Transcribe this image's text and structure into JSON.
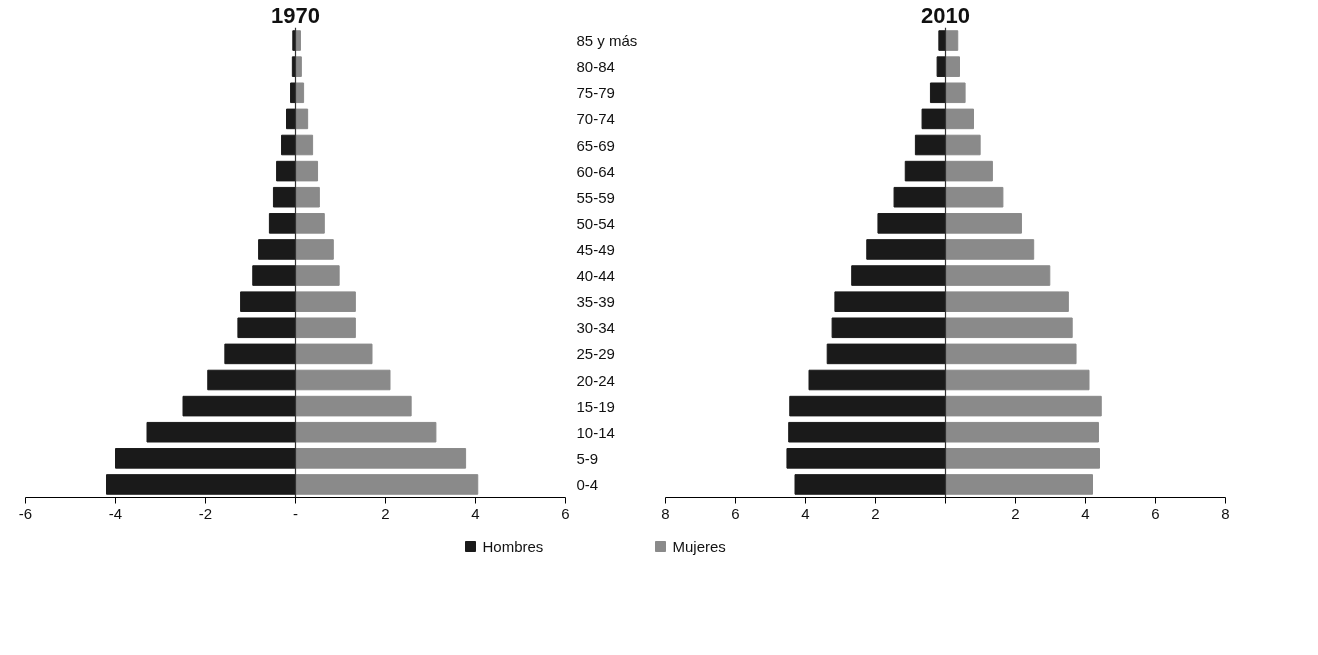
{
  "chart_data": [
    {
      "type": "bar",
      "orientation": "horizontal",
      "stacked": true,
      "title": "1970",
      "categories": [
        "85 y más",
        "80-84",
        "75-79",
        "70-74",
        "65-69",
        "60-64",
        "55-59",
        "50-54",
        "45-49",
        "40-44",
        "35-39",
        "30-34",
        "25-29",
        "20-24",
        "15-19",
        "10-14",
        "5-9",
        "0-4"
      ],
      "series": [
        {
          "name": "Hombres",
          "color": "#1a1a1a",
          "values": [
            -0.06,
            -0.07,
            -0.11,
            -0.2,
            -0.31,
            -0.42,
            -0.49,
            -0.58,
            -0.82,
            -0.95,
            -1.22,
            -1.28,
            -1.57,
            -1.95,
            -2.5,
            -3.3,
            -4.0,
            -4.2
          ]
        },
        {
          "name": "Mujeres",
          "color": "#8a8a8a",
          "values": [
            0.11,
            0.13,
            0.18,
            0.27,
            0.38,
            0.49,
            0.53,
            0.64,
            0.84,
            0.97,
            1.33,
            1.33,
            1.7,
            2.1,
            2.57,
            3.12,
            3.78,
            4.05
          ]
        }
      ],
      "xlim": [
        -6,
        6
      ],
      "xticks": [
        -6,
        -4,
        -2,
        {
          "value": 0,
          "label": "-"
        },
        2,
        4,
        6
      ],
      "ref_lines": [
        {
          "axis": "x",
          "value": 0
        }
      ],
      "grid": false,
      "legend": "bottom"
    },
    {
      "type": "bar",
      "orientation": "horizontal",
      "stacked": true,
      "title": "2010",
      "categories": [
        null,
        null,
        null,
        null,
        null,
        null,
        null,
        null,
        null,
        null,
        null,
        null,
        null,
        null,
        null,
        null,
        null,
        null
      ],
      "series": [
        {
          "color": "#1a1a1a",
          "values": [
            -0.19,
            -0.24,
            -0.43,
            -0.67,
            -0.86,
            -1.15,
            -1.47,
            -1.93,
            -2.25,
            -2.68,
            -3.16,
            -3.24,
            -3.38,
            -3.9,
            -4.45,
            -4.48,
            -4.53,
            -4.3
          ]
        },
        {
          "color": "#8a8a8a",
          "values": [
            0.35,
            0.4,
            0.56,
            0.8,
            0.99,
            1.34,
            1.64,
            2.17,
            2.52,
            2.98,
            3.51,
            3.62,
            3.73,
            4.1,
            4.45,
            4.37,
            4.4,
            4.2
          ]
        }
      ],
      "xlim": [
        -8,
        8
      ],
      "xticks": [
        {
          "value": -8,
          "label": "8"
        },
        {
          "value": -6,
          "label": "6"
        },
        {
          "value": -4,
          "label": "4"
        },
        {
          "value": -2,
          "label": "2"
        },
        {
          "value": 0,
          "label": null
        },
        2,
        4,
        6,
        8
      ],
      "ref_lines": [
        {
          "axis": "x",
          "value": 0
        }
      ],
      "grid": false,
      "legend": false,
      "tick_labels": "x"
    }
  ]
}
